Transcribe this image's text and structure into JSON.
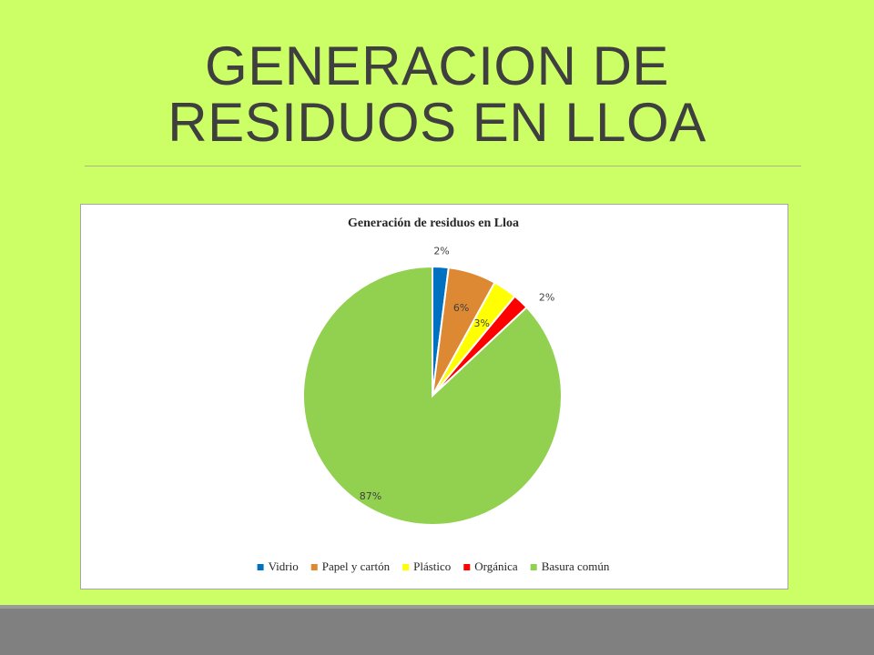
{
  "slide": {
    "title_line1": "GENERACION DE",
    "title_line2": "RESIDUOS EN LLOA"
  },
  "colors": {
    "background": "#ccff66",
    "title": "#3f3f3f",
    "footer": "#808080"
  },
  "chart_data": {
    "type": "pie",
    "title": "Generación de residuos en Lloa",
    "start_angle_deg": 0,
    "direction": "clockwise",
    "legend_position": "bottom",
    "slices": [
      {
        "label": "Vidrio",
        "value": 2,
        "display": "2%",
        "color": "#0070c0"
      },
      {
        "label": "Papel y cartón",
        "value": 6,
        "display": "6%",
        "color": "#dd8833"
      },
      {
        "label": "Plástico",
        "value": 3,
        "display": "3%",
        "color": "#ffff00"
      },
      {
        "label": "Orgánica",
        "value": 2,
        "display": "2%",
        "color": "#ff0000"
      },
      {
        "label": "Basura común",
        "value": 87,
        "display": "87%",
        "color": "#92d050"
      }
    ]
  }
}
